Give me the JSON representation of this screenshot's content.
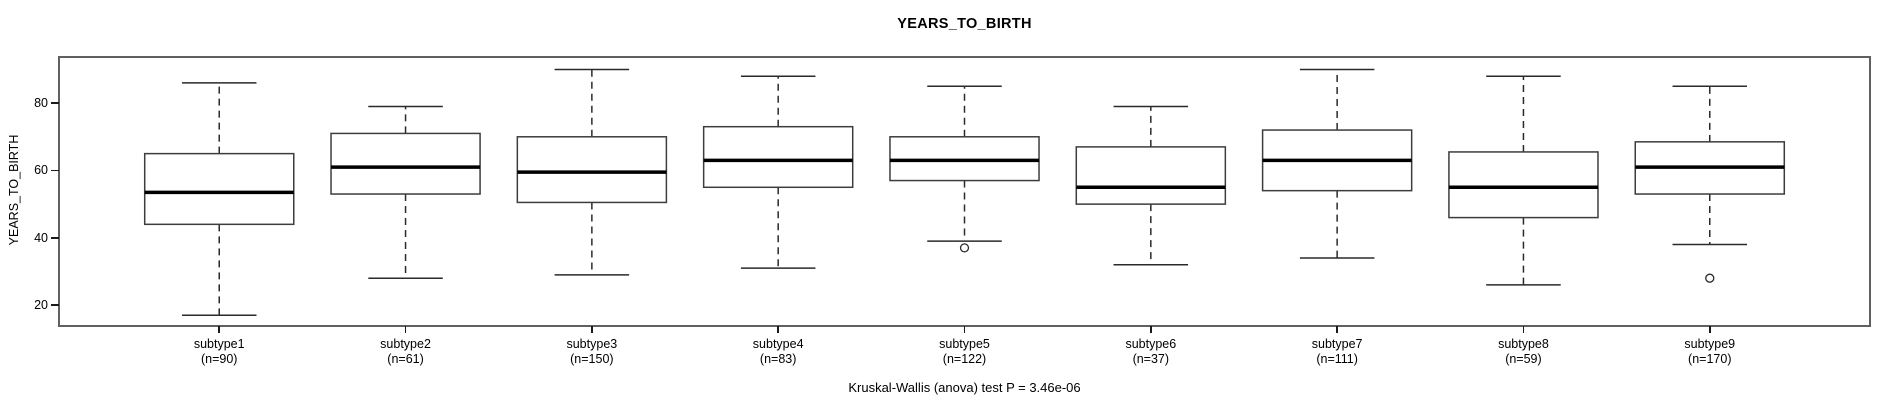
{
  "chart_data": {
    "type": "boxplot",
    "title": "YEARS_TO_BIRTH",
    "ylabel": "YEARS_TO_BIRTH",
    "xlabel": "",
    "ylim": [
      13.8,
      93.7
    ],
    "y_ticks": [
      20,
      40,
      60,
      80
    ],
    "grid": false,
    "annotation": "Kruskal-Wallis (anova) test P = 3.46e-06",
    "groups": [
      {
        "label": "subtype1",
        "n": 90,
        "sublabel": "(n=90)",
        "whisker_low": 17,
        "q1": 44,
        "median": 53.5,
        "q3": 65,
        "whisker_high": 86,
        "outliers": []
      },
      {
        "label": "subtype2",
        "n": 61,
        "sublabel": "(n=61)",
        "whisker_low": 28,
        "q1": 53,
        "median": 61,
        "q3": 71,
        "whisker_high": 79,
        "outliers": []
      },
      {
        "label": "subtype3",
        "n": 150,
        "sublabel": "(n=150)",
        "whisker_low": 29,
        "q1": 50.5,
        "median": 59.5,
        "q3": 70,
        "whisker_high": 90,
        "outliers": []
      },
      {
        "label": "subtype4",
        "n": 83,
        "sublabel": "(n=83)",
        "whisker_low": 31,
        "q1": 55,
        "median": 63,
        "q3": 73,
        "whisker_high": 88,
        "outliers": []
      },
      {
        "label": "subtype5",
        "n": 122,
        "sublabel": "(n=122)",
        "whisker_low": 39,
        "q1": 57,
        "median": 63,
        "q3": 70,
        "whisker_high": 85,
        "outliers": [
          37
        ]
      },
      {
        "label": "subtype6",
        "n": 37,
        "sublabel": "(n=37)",
        "whisker_low": 32,
        "q1": 50,
        "median": 55,
        "q3": 67,
        "whisker_high": 79,
        "outliers": []
      },
      {
        "label": "subtype7",
        "n": 111,
        "sublabel": "(n=111)",
        "whisker_low": 34,
        "q1": 54,
        "median": 63,
        "q3": 72,
        "whisker_high": 90,
        "outliers": []
      },
      {
        "label": "subtype8",
        "n": 59,
        "sublabel": "(n=59)",
        "whisker_low": 26,
        "q1": 46,
        "median": 55,
        "q3": 65.5,
        "whisker_high": 88,
        "outliers": []
      },
      {
        "label": "subtype9",
        "n": 170,
        "sublabel": "(n=170)",
        "whisker_low": 38,
        "q1": 53,
        "median": 61,
        "q3": 68.5,
        "whisker_high": 85,
        "outliers": [
          28
        ]
      }
    ],
    "colors": {
      "background": "#ffffff",
      "box_fill": "#ffffff",
      "box_stroke": "#3d3d3d",
      "whisker_stroke": "#2a2a2a",
      "median_stroke": "#000000",
      "frame_stroke": "#606060",
      "text": "#000000"
    }
  }
}
